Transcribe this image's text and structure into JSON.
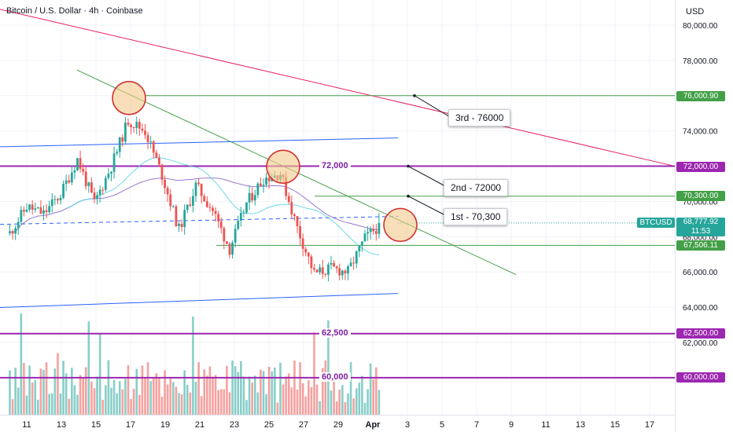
{
  "header": {
    "title": "Bitcoin / U.S. Dollar · 4h · Coinbase",
    "currency": "USD"
  },
  "price_axis": {
    "labels": [
      "80,000.00",
      "78,000.00",
      "76,000.00",
      "74,000.00",
      "72,000.00",
      "70,000.00",
      "68,000.00",
      "66,000.00",
      "64,000.00",
      "62,000.00"
    ]
  },
  "time_axis": {
    "labels": [
      "11",
      "13",
      "15",
      "17",
      "19",
      "21",
      "23",
      "25",
      "27",
      "29",
      "Apr",
      "3",
      "5",
      "7",
      "9",
      "11",
      "13",
      "15",
      "17"
    ]
  },
  "levels": {
    "l72000": "72,000",
    "l62500": "62,500",
    "l60000": "60,000"
  },
  "callouts": {
    "third": "3rd - 76000",
    "second": "2nd - 72000",
    "first": "1st - 70,300"
  },
  "price_tags": {
    "t76000": "76,000.90",
    "t72000": "72,000.00",
    "t70300": "70,300.00",
    "symbol": "BTCUSD",
    "last": "68,777.92",
    "countdown": "11:53",
    "t67506": "67,506.11",
    "t62500": "62,500.00",
    "t60000": "60,000.00"
  },
  "colors": {
    "up": "#26a69a",
    "down": "#ef5350",
    "purple_level": "#9c27b0",
    "green_line": "#43a047",
    "blue_channel": "#2962ff",
    "red_trend": "#e91e63",
    "circle_fill": "#f3c98b",
    "circle_stroke": "#d32f2f"
  },
  "chart_data": {
    "type": "candlestick",
    "title": "Bitcoin / U.S. Dollar · 4h · Coinbase",
    "ylabel": "USD",
    "ylim": [
      61000,
      80500
    ],
    "x_range": [
      "Mar 10",
      "Apr 17"
    ],
    "last_price": 68777.92,
    "price_path": [
      [
        "Mar 10",
        68200
      ],
      [
        "Mar 11",
        69700
      ],
      [
        "Mar 12",
        69300
      ],
      [
        "Mar 13",
        70400
      ],
      [
        "Mar 14",
        72400
      ],
      [
        "Mar 15",
        69900
      ],
      [
        "Mar 16",
        72000
      ],
      [
        "Mar 17",
        74600
      ],
      [
        "Mar 18",
        74000
      ],
      [
        "Mar 19",
        71500
      ],
      [
        "Mar 20",
        68400
      ],
      [
        "Mar 21",
        70900
      ],
      [
        "Mar 22",
        69500
      ],
      [
        "Mar 23",
        67300
      ],
      [
        "Mar 24",
        69900
      ],
      [
        "Mar 25",
        71300
      ],
      [
        "Mar 26",
        71600
      ],
      [
        "Mar 27",
        68500
      ],
      [
        "Mar 28",
        65900
      ],
      [
        "Mar 29",
        66200
      ],
      [
        "Mar 30",
        66000
      ],
      [
        "Mar 31",
        67900
      ],
      [
        "Apr 1",
        68780
      ]
    ],
    "horizontal_levels": [
      76000.9,
      72000,
      70300,
      67506.11,
      62500,
      60000
    ],
    "annotations": [
      "3rd - 76000",
      "2nd - 72000",
      "1st - 70,300",
      "72,000",
      "62,500",
      "60,000"
    ]
  }
}
